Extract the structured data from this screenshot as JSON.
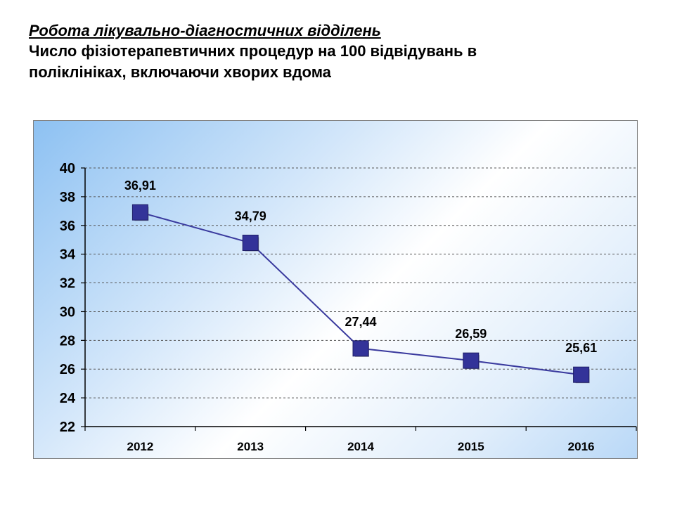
{
  "header": {
    "title": "Робота лікувально-діагностичних відділень",
    "subtitle_line1": "Число фізіотерапевтичних процедур на 100 відвідувань в",
    "subtitle_line2": "поліклініках, включаючи хворих вдома"
  },
  "colors": {
    "line": "#3a3a9e",
    "marker": "#333399",
    "grid": "#555555"
  },
  "chart_data": {
    "type": "line",
    "title": "",
    "xlabel": "",
    "ylabel": "",
    "categories": [
      "2012",
      "2013",
      "2014",
      "2015",
      "2016"
    ],
    "series": [
      {
        "values": [
          36.91,
          34.79,
          27.44,
          26.59,
          25.61
        ]
      }
    ],
    "data_labels": [
      "36,91",
      "34,79",
      "27,44",
      "26,59",
      "25,61"
    ],
    "ylim": [
      22,
      40
    ],
    "yticks": [
      22,
      24,
      26,
      28,
      30,
      32,
      34,
      36,
      38,
      40
    ],
    "grid": true,
    "legend": "none"
  }
}
